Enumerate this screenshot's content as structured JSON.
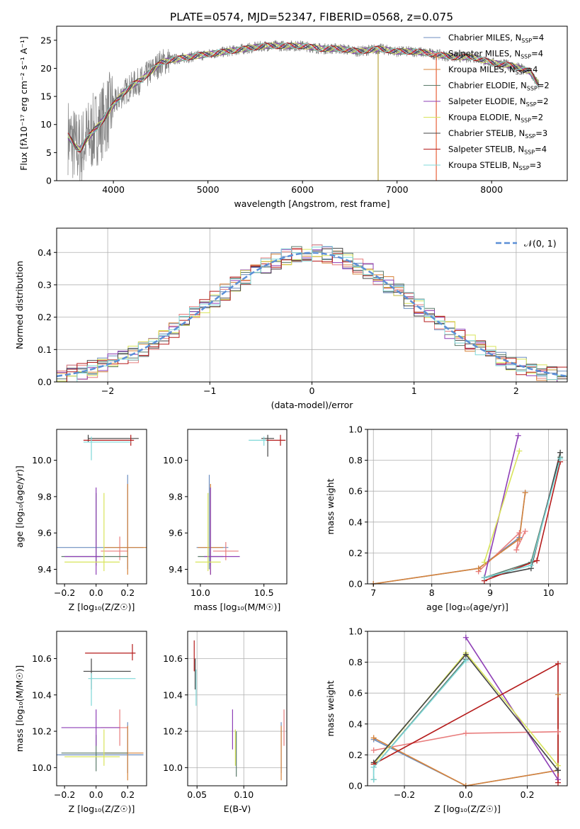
{
  "figure": {
    "title": "PLATE=0574, MJD=52347, FIBERID=0568, z=0.075"
  },
  "series_styles": [
    {
      "name": "Chabrier MILES",
      "color": "#6c8ebf"
    },
    {
      "name": "Salpeter MILES",
      "color": "#e87d7d"
    },
    {
      "name": "Kroupa MILES",
      "color": "#d7833a"
    },
    {
      "name": "Chabrier ELODIE",
      "color": "#5a7a6a"
    },
    {
      "name": "Salpeter ELODIE",
      "color": "#8e3fb6"
    },
    {
      "name": "Kroupa ELODIE",
      "color": "#d8e45a"
    },
    {
      "name": "Chabrier STELIB",
      "color": "#444444"
    },
    {
      "name": "Salpeter STELIB",
      "color": "#b51c1c"
    },
    {
      "name": "Kroupa STELIB",
      "color": "#7fd8d8"
    }
  ],
  "chart_data": [
    {
      "id": "spectrum",
      "type": "line",
      "xlabel": "wavelength [Angstrom, rest frame]",
      "ylabel": "Flux [fλ10⁻¹⁷ erg cm⁻² s⁻¹ A⁻¹]",
      "xlim": [
        3400,
        8800
      ],
      "ylim": [
        0,
        27.5
      ],
      "xticks": [
        4000,
        5000,
        6000,
        7000,
        8000
      ],
      "yticks": [
        0,
        5,
        10,
        15,
        20,
        25
      ],
      "grid": false,
      "legend": {
        "position": "top-right",
        "entries": [
          {
            "label": "Chabrier MILES, N",
            "sub": "SSP",
            "suffix": "=4",
            "series": 0
          },
          {
            "label": "Salpeter MILES, N",
            "sub": "SSP",
            "suffix": "=4",
            "series": 1
          },
          {
            "label": "Kroupa MILES, N",
            "sub": "SSP",
            "suffix": "=4",
            "series": 2
          },
          {
            "label": "Chabrier ELODIE, N",
            "sub": "SSP",
            "suffix": "=2",
            "series": 3
          },
          {
            "label": "Salpeter ELODIE, N",
            "sub": "SSP",
            "suffix": "=2",
            "series": 4
          },
          {
            "label": "Kroupa ELODIE, N",
            "sub": "SSP",
            "suffix": "=2",
            "series": 5
          },
          {
            "label": "Chabrier STELIB, N",
            "sub": "SSP",
            "suffix": "=3",
            "series": 6
          },
          {
            "label": "Salpeter STELIB, N",
            "sub": "SSP",
            "suffix": "=4",
            "series": 7
          },
          {
            "label": "Kroupa STELIB, N",
            "sub": "SSP",
            "suffix": "=3",
            "series": 8
          }
        ]
      },
      "data_color": "#808080",
      "continuum": {
        "x": [
          3520,
          3600,
          3650,
          3700,
          3800,
          3900,
          4000,
          4100,
          4200,
          4300,
          4400,
          4500,
          4600,
          4800,
          5000,
          5200,
          5400,
          5600,
          5800,
          6000,
          6200,
          6400,
          6600,
          6800,
          7000,
          7200,
          7400,
          7600,
          7800,
          8000,
          8200,
          8400,
          8500
        ],
        "y": [
          8,
          6,
          5.5,
          7,
          9,
          11,
          13.5,
          15.5,
          17,
          18,
          19.5,
          21,
          21.5,
          22,
          22.5,
          23,
          23.5,
          24,
          24,
          24,
          23.5,
          23.5,
          23,
          23.5,
          23,
          23,
          22.5,
          22,
          22,
          21,
          20.5,
          19.5,
          17
        ]
      }
    },
    {
      "id": "residuals",
      "type": "step",
      "xlabel": "(data-model)/error",
      "ylabel": "Normed distribution",
      "xlim": [
        -2.5,
        2.5
      ],
      "ylim": [
        0,
        0.475
      ],
      "xticks": [
        -2,
        -1,
        0,
        1,
        2
      ],
      "yticks": [
        0.0,
        0.1,
        0.2,
        0.3,
        0.4
      ],
      "grid": true,
      "legend": {
        "position": "top-right",
        "entries": [
          {
            "label": "𝒩(0, 1)",
            "color": "#5b8fd6",
            "dashed": true
          }
        ]
      },
      "normal": {
        "mu": 0,
        "sigma": 1
      }
    },
    {
      "id": "z-age",
      "type": "errorbar",
      "xlabel": "Z [log₁₀(Z/Z☉)]",
      "ylabel": "age  [log₁₀(age/yr)]",
      "xlim": [
        -0.25,
        0.32
      ],
      "ylim": [
        9.32,
        10.17
      ],
      "xticks": [
        -0.2,
        0.0,
        0.2
      ],
      "yticks": [
        9.4,
        9.6,
        9.8,
        10.0
      ],
      "grid": false,
      "points": [
        {
          "s": 0,
          "x": 0.2,
          "y": 9.52,
          "xe": [
            0.45,
            0.1
          ],
          "ye": [
            0.12,
            0.4
          ]
        },
        {
          "s": 1,
          "x": 0.15,
          "y": 9.5,
          "xe": [
            0.12,
            0.05
          ],
          "ye": [
            0.05,
            0.08
          ]
        },
        {
          "s": 2,
          "x": 0.2,
          "y": 9.52,
          "xe": [
            0.15,
            0.15
          ],
          "ye": [
            0.15,
            0.35
          ]
        },
        {
          "s": 3,
          "x": 0.0,
          "y": 9.47,
          "xe": [
            0.22,
            0.2
          ],
          "ye": [
            0.05,
            0.35
          ]
        },
        {
          "s": 4,
          "x": 0.0,
          "y": 9.47,
          "xe": [
            0.2,
            0.03
          ],
          "ye": [
            0.1,
            0.38
          ]
        },
        {
          "s": 5,
          "x": 0.05,
          "y": 9.44,
          "xe": [
            0.25,
            0.1
          ],
          "ye": [
            0.05,
            0.38
          ]
        },
        {
          "s": 6,
          "x": -0.05,
          "y": 10.12,
          "xe": [
            0.0,
            0.32
          ],
          "ye": [
            0.02,
            0.02
          ]
        },
        {
          "s": 7,
          "x": 0.22,
          "y": 10.11,
          "xe": [
            0.3,
            0.02
          ],
          "ye": [
            0.03,
            0.03
          ]
        },
        {
          "s": 8,
          "x": -0.03,
          "y": 10.1,
          "xe": [
            0.05,
            0.25
          ],
          "ye": [
            0.1,
            0.03
          ]
        }
      ]
    },
    {
      "id": "mass-age",
      "type": "errorbar",
      "xlabel": "mass [log₁₀(M/M☉)]",
      "ylabel": "",
      "xlim": [
        9.9,
        10.68
      ],
      "ylim": [
        9.32,
        10.17
      ],
      "xticks": [
        10.0,
        10.5
      ],
      "yticks": [
        9.4,
        9.6,
        9.8,
        10.0
      ],
      "grid": false,
      "points": [
        {
          "s": 0,
          "x": 10.07,
          "y": 9.52,
          "xe": [
            0.1,
            0.15
          ],
          "ye": [
            0.12,
            0.4
          ]
        },
        {
          "s": 1,
          "x": 10.2,
          "y": 9.5,
          "xe": [
            0.1,
            0.1
          ],
          "ye": [
            0.05,
            0.05
          ]
        },
        {
          "s": 2,
          "x": 10.08,
          "y": 9.52,
          "xe": [
            0.1,
            0.1
          ],
          "ye": [
            0.15,
            0.35
          ]
        },
        {
          "s": 3,
          "x": 10.08,
          "y": 9.47,
          "xe": [
            0.1,
            0.1
          ],
          "ye": [
            0.05,
            0.38
          ]
        },
        {
          "s": 4,
          "x": 10.08,
          "y": 9.47,
          "xe": [
            0.05,
            0.23
          ],
          "ye": [
            0.1,
            0.38
          ]
        },
        {
          "s": 5,
          "x": 10.06,
          "y": 9.44,
          "xe": [
            0.1,
            0.1
          ],
          "ye": [
            0.05,
            0.38
          ]
        },
        {
          "s": 6,
          "x": 10.53,
          "y": 10.12,
          "xe": [
            0.05,
            0.05
          ],
          "ye": [
            0.1,
            0.02
          ]
        },
        {
          "s": 7,
          "x": 10.63,
          "y": 10.11,
          "xe": [
            0.12,
            0.04
          ],
          "ye": [
            0.03,
            0.03
          ]
        },
        {
          "s": 8,
          "x": 10.5,
          "y": 10.11,
          "xe": [
            0.12,
            0.02
          ],
          "ye": [
            0.03,
            0.02
          ]
        }
      ]
    },
    {
      "id": "weight-age",
      "type": "line",
      "xlabel": "age  [log₁₀(age/yr)]",
      "ylabel": "mass weight",
      "xlim": [
        6.9,
        10.32
      ],
      "ylim": [
        0,
        1
      ],
      "xticks": [
        7,
        8,
        9,
        10
      ],
      "yticks": [
        0.0,
        0.2,
        0.4,
        0.6,
        0.8,
        1.0
      ],
      "grid": true,
      "series": [
        {
          "s": 0,
          "x": [
            7.0,
            8.8,
            9.5,
            9.6
          ],
          "y": [
            0.0,
            0.1,
            0.3,
            0.59
          ]
        },
        {
          "s": 1,
          "x": [
            8.8,
            9.5,
            9.45,
            9.6
          ],
          "y": [
            0.08,
            0.33,
            0.22,
            0.34
          ]
        },
        {
          "s": 2,
          "x": [
            7.0,
            8.8,
            9.5,
            9.6
          ],
          "y": [
            0.0,
            0.1,
            0.29,
            0.59
          ]
        },
        {
          "s": 3,
          "x": [
            8.9,
            9.7,
            10.2
          ],
          "y": [
            0.04,
            0.14,
            0.82
          ]
        },
        {
          "s": 4,
          "x": [
            8.9,
            9.48
          ],
          "y": [
            0.04,
            0.96
          ]
        },
        {
          "s": 5,
          "x": [
            8.9,
            9.5
          ],
          "y": [
            0.14,
            0.86
          ]
        },
        {
          "s": 6,
          "x": [
            8.9,
            9.7,
            10.2
          ],
          "y": [
            0.04,
            0.1,
            0.85
          ]
        },
        {
          "s": 7,
          "x": [
            8.9,
            9.8,
            10.2
          ],
          "y": [
            0.02,
            0.15,
            0.79
          ]
        },
        {
          "s": 8,
          "x": [
            8.9,
            9.7,
            10.2
          ],
          "y": [
            0.04,
            0.12,
            0.81
          ]
        }
      ]
    },
    {
      "id": "z-mass",
      "type": "errorbar",
      "xlabel": "Z [log₁₀(Z/Z☉)]",
      "ylabel": "mass [log₁₀(M/M☉)]",
      "xlim": [
        -0.25,
        0.32
      ],
      "ylim": [
        9.9,
        10.75
      ],
      "xticks": [
        -0.2,
        0.0,
        0.2
      ],
      "yticks": [
        10.0,
        10.2,
        10.4,
        10.6
      ],
      "grid": false,
      "points": [
        {
          "s": 0,
          "x": 0.2,
          "y": 10.07,
          "xe": [
            0.45,
            0.1
          ],
          "ye": [
            0.1,
            0.18
          ]
        },
        {
          "s": 1,
          "x": 0.15,
          "y": 10.22,
          "xe": [
            0.12,
            0.05
          ],
          "ye": [
            0.1,
            0.1
          ]
        },
        {
          "s": 2,
          "x": 0.2,
          "y": 10.08,
          "xe": [
            0.15,
            0.1
          ],
          "ye": [
            0.15,
            0.15
          ]
        },
        {
          "s": 3,
          "x": 0.0,
          "y": 10.08,
          "xe": [
            0.22,
            0.2
          ],
          "ye": [
            0.1,
            0.1
          ]
        },
        {
          "s": 4,
          "x": 0.0,
          "y": 10.22,
          "xe": [
            0.22,
            0.15
          ],
          "ye": [
            0.1,
            0.1
          ]
        },
        {
          "s": 5,
          "x": 0.05,
          "y": 10.06,
          "xe": [
            0.25,
            0.1
          ],
          "ye": [
            0.05,
            0.15
          ]
        },
        {
          "s": 6,
          "x": -0.03,
          "y": 10.53,
          "xe": [
            0.05,
            0.25
          ],
          "ye": [
            0.1,
            0.07
          ]
        },
        {
          "s": 7,
          "x": 0.23,
          "y": 10.63,
          "xe": [
            0.3,
            0.02
          ],
          "ye": [
            0.04,
            0.05
          ]
        },
        {
          "s": 8,
          "x": -0.03,
          "y": 10.49,
          "xe": [
            0.02,
            0.28
          ],
          "ye": [
            0.15,
            0.03
          ]
        }
      ]
    },
    {
      "id": "ebv-mass",
      "type": "errorbar",
      "xlabel": "E(B-V)",
      "ylabel": "",
      "xlim": [
        0.04,
        0.146
      ],
      "ylim": [
        9.9,
        10.75
      ],
      "xticks": [
        0.05,
        0.1
      ],
      "yticks": [
        10.0,
        10.2,
        10.4,
        10.6
      ],
      "grid": true,
      "points": [
        {
          "s": 0,
          "x": 0.14,
          "y": 10.07,
          "xe": [
            0,
            0
          ],
          "ye": [
            0.1,
            0.18
          ]
        },
        {
          "s": 1,
          "x": 0.143,
          "y": 10.22,
          "xe": [
            0,
            0
          ],
          "ye": [
            0.1,
            0.1
          ]
        },
        {
          "s": 2,
          "x": 0.14,
          "y": 10.08,
          "xe": [
            0,
            0
          ],
          "ye": [
            0.15,
            0.15
          ]
        },
        {
          "s": 3,
          "x": 0.092,
          "y": 10.08,
          "xe": [
            0,
            0
          ],
          "ye": [
            0.13,
            0.12
          ]
        },
        {
          "s": 4,
          "x": 0.088,
          "y": 10.22,
          "xe": [
            0,
            0
          ],
          "ye": [
            0.12,
            0.1
          ]
        },
        {
          "s": 5,
          "x": 0.091,
          "y": 10.06,
          "xe": [
            0,
            0
          ],
          "ye": [
            0.05,
            0.15
          ]
        },
        {
          "s": 6,
          "x": 0.048,
          "y": 10.53,
          "xe": [
            0,
            0
          ],
          "ye": [
            0.1,
            0.07
          ]
        },
        {
          "s": 7,
          "x": 0.047,
          "y": 10.63,
          "xe": [
            0,
            0
          ],
          "ye": [
            0.1,
            0.07
          ]
        },
        {
          "s": 8,
          "x": 0.049,
          "y": 10.49,
          "xe": [
            0,
            0
          ],
          "ye": [
            0.15,
            0.05
          ]
        }
      ]
    },
    {
      "id": "weight-z",
      "type": "line",
      "xlabel": "Z [log₁₀(Z/Z☉)]",
      "ylabel": "mass weight",
      "xlim": [
        -0.32,
        0.33
      ],
      "ylim": [
        0,
        1
      ],
      "xticks": [
        -0.2,
        0.0,
        0.2
      ],
      "yticks": [
        0.0,
        0.2,
        0.4,
        0.6,
        0.8,
        1.0
      ],
      "grid": true,
      "series": [
        {
          "s": 0,
          "x": [
            -0.3,
            0.0,
            0.3,
            0.3
          ],
          "y": [
            0.3,
            0.0,
            0.1,
            0.59
          ]
        },
        {
          "s": 1,
          "x": [
            -0.3,
            0.0,
            0.3
          ],
          "y": [
            0.23,
            0.34,
            0.35
          ]
        },
        {
          "s": 2,
          "x": [
            -0.3,
            0.0,
            0.3,
            0.3
          ],
          "y": [
            0.31,
            0.0,
            0.1,
            0.59
          ]
        },
        {
          "s": 3,
          "x": [
            -0.3,
            -0.3,
            0.0
          ],
          "y": [
            0.04,
            0.12,
            0.82
          ]
        },
        {
          "s": 4,
          "x": [
            0.0,
            0.3
          ],
          "y": [
            0.96,
            0.04
          ]
        },
        {
          "s": 5,
          "x": [
            -0.3,
            0.0,
            0.3
          ],
          "y": [
            0.14,
            0.86,
            0.13
          ]
        },
        {
          "s": 6,
          "x": [
            -0.3,
            0.0,
            0.3,
            0.3
          ],
          "y": [
            0.15,
            0.85,
            0.1,
            0.1
          ]
        },
        {
          "s": 7,
          "x": [
            -0.3,
            0.3,
            0.3
          ],
          "y": [
            0.14,
            0.79,
            0.02
          ]
        },
        {
          "s": 8,
          "x": [
            -0.3,
            -0.3,
            0.0
          ],
          "y": [
            0.04,
            0.12,
            0.81
          ]
        }
      ]
    }
  ]
}
